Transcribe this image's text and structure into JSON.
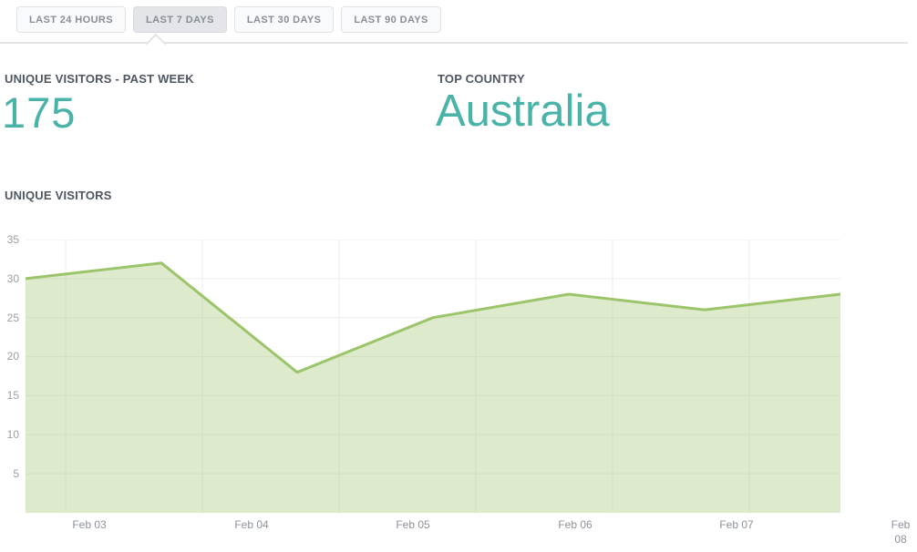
{
  "tabs": {
    "items": [
      {
        "label": "LAST 24 HOURS",
        "selected": false
      },
      {
        "label": "LAST 7 DAYS",
        "selected": true
      },
      {
        "label": "LAST 30 DAYS",
        "selected": false
      },
      {
        "label": "LAST 90 DAYS",
        "selected": false
      }
    ]
  },
  "stats": {
    "visitors": {
      "label": "UNIQUE VISITORS - PAST WEEK",
      "value": "175"
    },
    "country": {
      "label": "TOP COUNTRY",
      "value": "Australia"
    }
  },
  "chart": {
    "title": "UNIQUE VISITORS"
  },
  "chart_data": {
    "type": "area",
    "title": "UNIQUE VISITORS",
    "values": [
      30,
      32,
      18,
      25,
      28,
      26,
      28
    ],
    "x_tick_labels": [
      "Feb 03",
      "Feb 04",
      "Feb 05",
      "Feb 06",
      "Feb 07",
      "Feb 08"
    ],
    "y_ticks": [
      35,
      30,
      25,
      20,
      15,
      10,
      5
    ],
    "ylim": [
      0,
      35
    ],
    "grid": true,
    "legend": false
  },
  "colors": {
    "accent_teal": "#4ab3a8",
    "heading": "#4d5661",
    "line_green": "#9cc46a",
    "fill_green": "#a7c778",
    "fill_opacity": 0.38,
    "gridline": "#ededed",
    "axis_label": "#9aa0a8",
    "separator": "#e3e4e6"
  }
}
